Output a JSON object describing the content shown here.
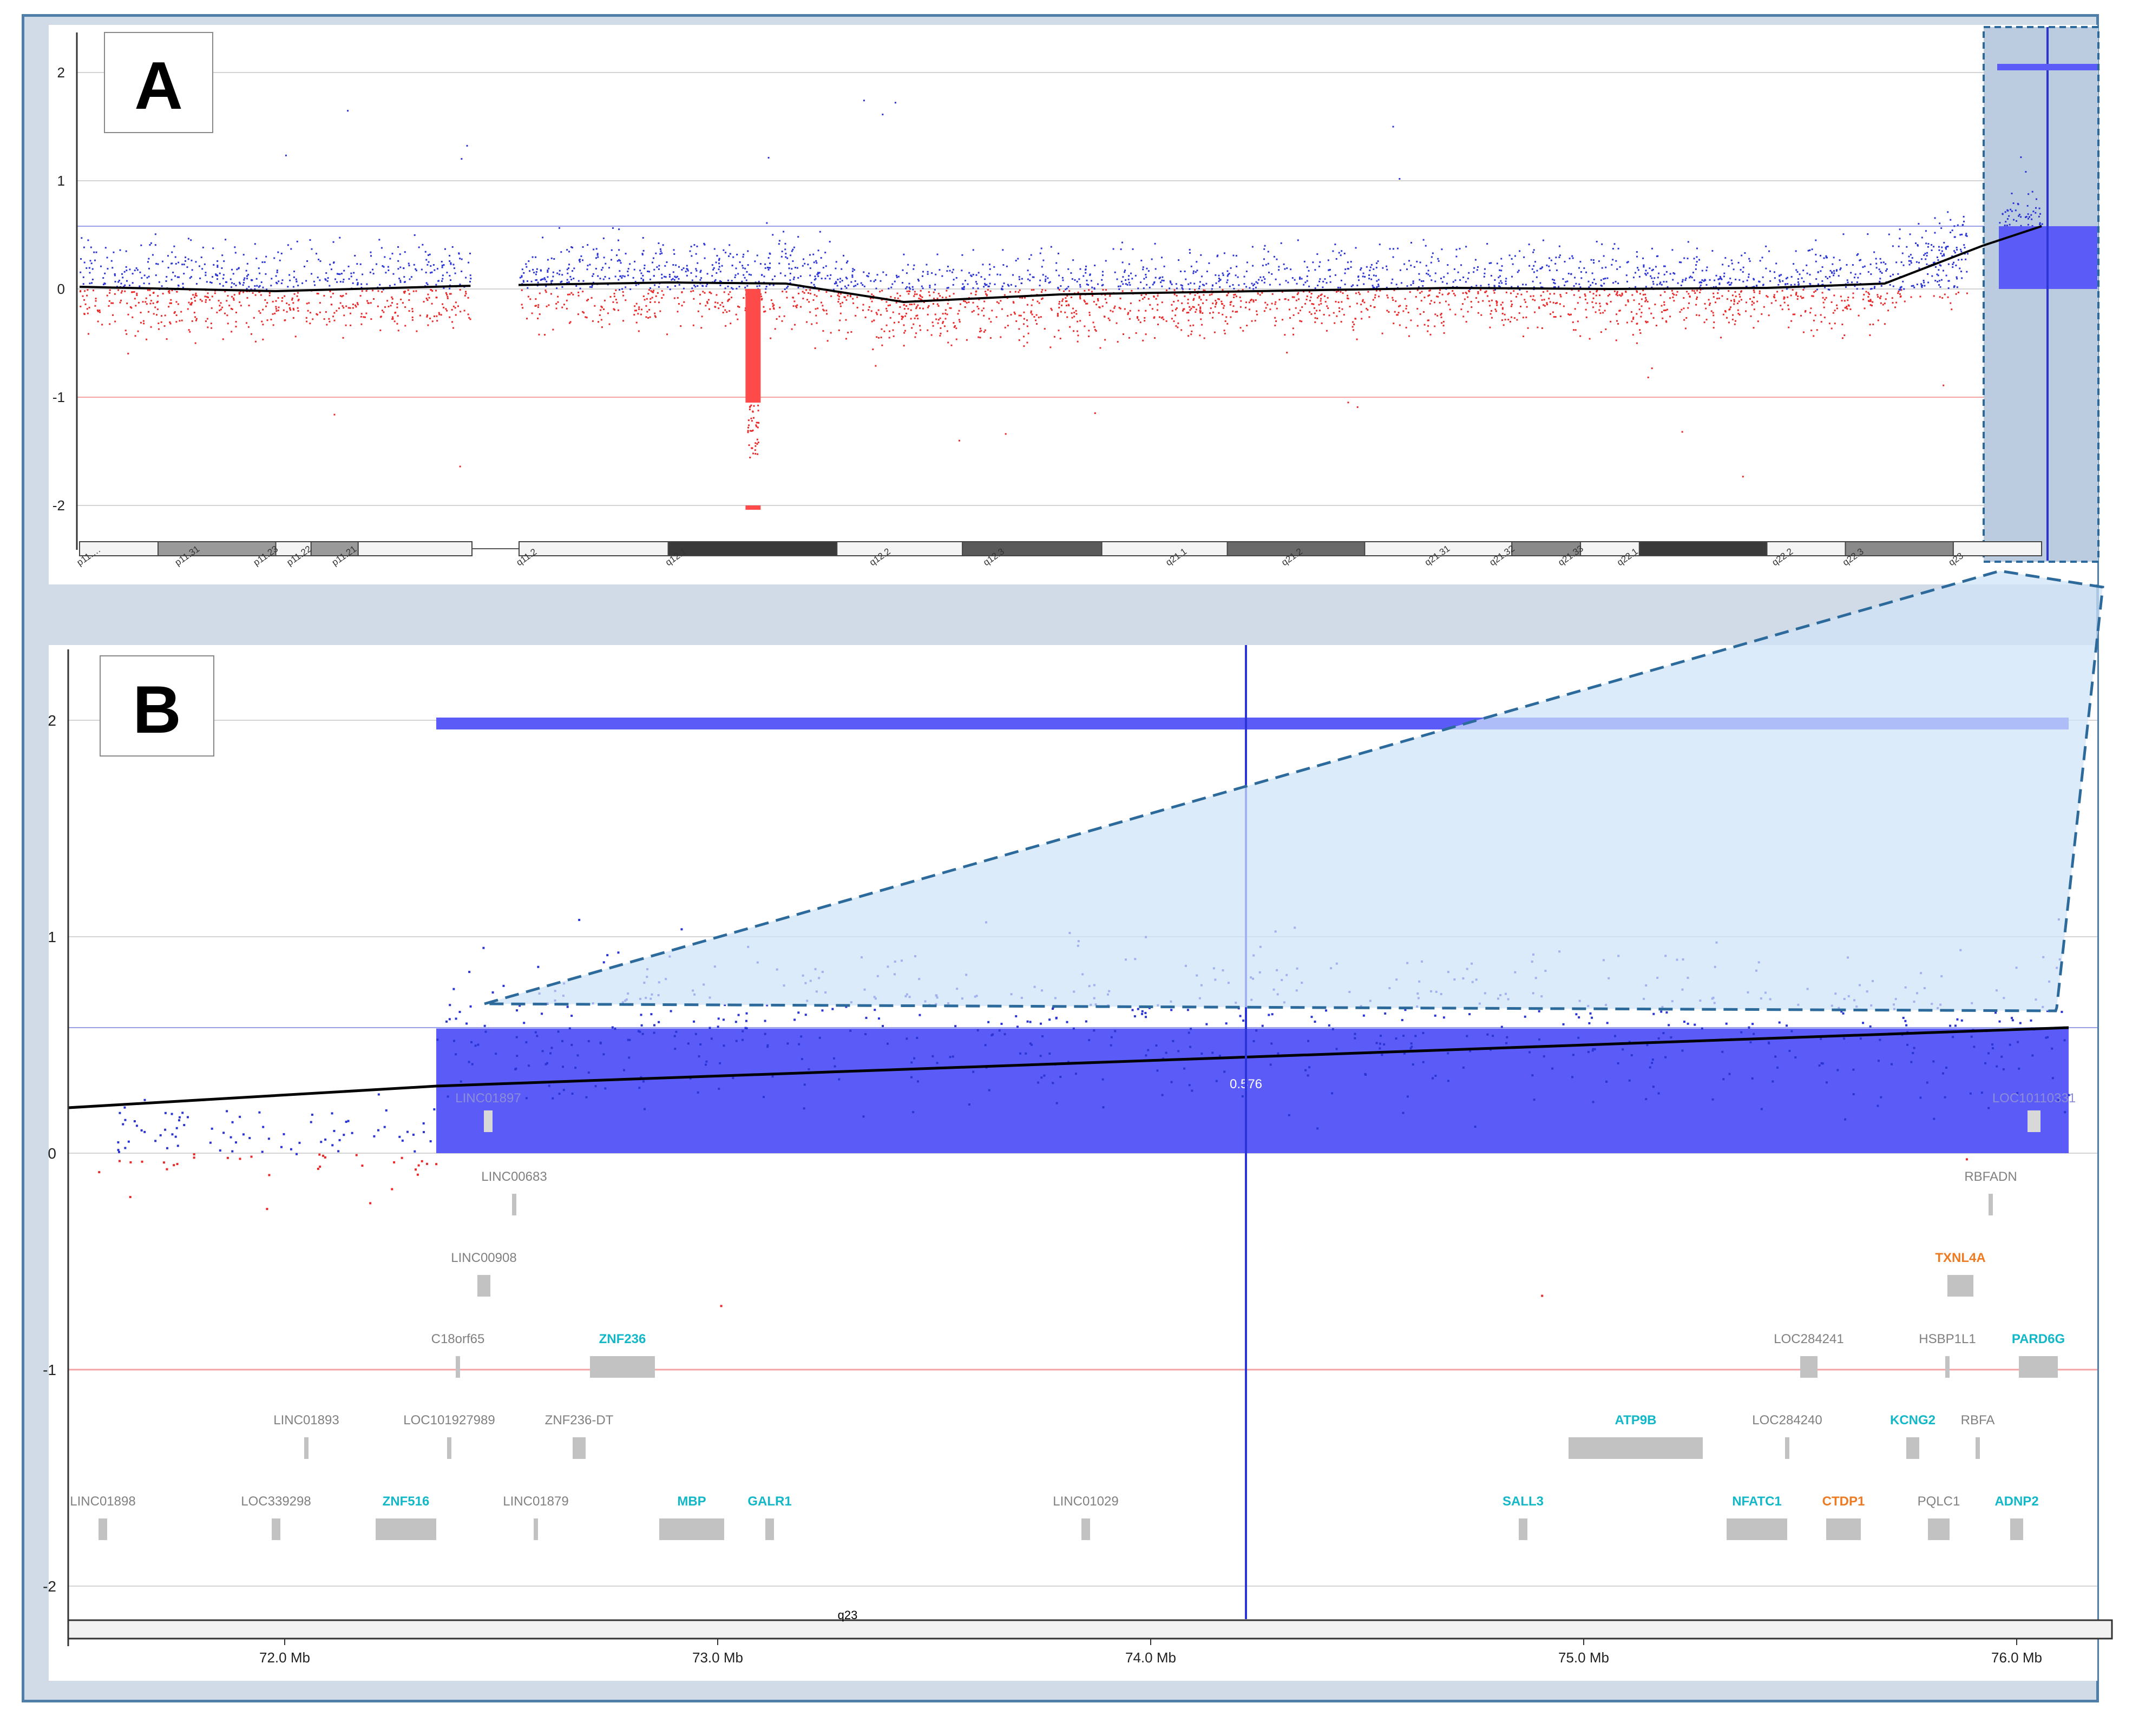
{
  "colors": {
    "gain": "#2b35d6",
    "loss": "#ea2a2a",
    "gainBar": "#5b5cf7",
    "lossBar": "#ff4a4a",
    "trend": "#000000",
    "gainRef": "#9aa0e8",
    "lossRef": "#f2a3a3",
    "selection": "#bccce0",
    "zoom": "#cfe3f6",
    "zoomStroke": "#2d6a9c",
    "genePlain": "#808080",
    "geneCyan": "#13b8c8",
    "geneOrange": "#ee7a22"
  },
  "chart_data": [
    {
      "type": "scatter",
      "panel_label": "A",
      "yticks": [
        2,
        1,
        0,
        -1,
        -2
      ],
      "ylim": [
        -2.35,
        2.2
      ],
      "thresholds": {
        "gain": 0.58,
        "loss": -1.0
      },
      "trend": {
        "x": [
          0.0,
          0.1,
          0.2,
          0.3,
          0.36,
          0.42,
          0.5,
          0.6,
          0.7,
          0.78,
          0.86,
          0.92,
          0.97,
          1.0
        ],
        "y": [
          0.02,
          -0.02,
          0.03,
          0.06,
          0.05,
          -0.12,
          -0.05,
          -0.02,
          0.01,
          0.0,
          0.01,
          0.05,
          0.4,
          0.58
        ]
      },
      "segments": [
        {
          "x0": 0.343,
          "x1": 0.345,
          "y0": 0,
          "y1": -1.05,
          "kind": "loss",
          "note_value": -1.05
        },
        {
          "x0": 0.948,
          "x1": 1.0,
          "y0": 0,
          "y1": 0.58,
          "kind": "gain",
          "note_value": 0.58
        }
      ],
      "cytobands": [
        "p11.…",
        "p11.31",
        "p11.23",
        "p11.22",
        "p11.21",
        "q11.2",
        "q12.1",
        "q12.2",
        "q12.3",
        "q21.1",
        "q21.2",
        "q21.31",
        "q21.32",
        "q21.33",
        "q22.1",
        "q22.2",
        "q22.3",
        "q23"
      ]
    },
    {
      "type": "scatter",
      "panel_label": "B",
      "yticks": [
        2,
        1,
        0,
        -1,
        -2
      ],
      "ylim": [
        -2.2,
        2.2
      ],
      "xticks": [
        72.0,
        73.0,
        74.0,
        75.0,
        76.0
      ],
      "xtick_labels": [
        "72.0 Mb",
        "73.0 Mb",
        "74.0 Mb",
        "75.0 Mb",
        "76.0 Mb"
      ],
      "xlim": [
        71.5,
        76.22
      ],
      "cursor_x": 74.22,
      "segment": {
        "x0": 72.35,
        "x1": 76.12,
        "value": 0.576,
        "label": "0.576"
      },
      "trend": {
        "x": [
          71.5,
          72.35,
          76.12
        ],
        "y": [
          0.21,
          0.31,
          0.58
        ]
      },
      "cytoband_label": "q23",
      "genes": [
        {
          "name": "LINC01897",
          "x": 72.47,
          "row": "in",
          "color": "plain",
          "w": 0.02
        },
        {
          "name": "LOC10110331",
          "x": 76.04,
          "row": "in",
          "color": "plain",
          "w": 0.03
        },
        {
          "name": "LINC00683",
          "x": 72.53,
          "row": 0,
          "color": "plain",
          "w": 0.005
        },
        {
          "name": "RBFADN",
          "x": 75.94,
          "row": 0,
          "color": "plain",
          "w": 0.01
        },
        {
          "name": "LINC00908",
          "x": 72.46,
          "row": 1,
          "color": "plain",
          "w": 0.03
        },
        {
          "name": "TXNL4A",
          "x": 75.87,
          "row": 1,
          "color": "orange",
          "w": 0.06
        },
        {
          "name": "C18orf65",
          "x": 72.4,
          "row": 2,
          "color": "plain",
          "w": 0.005
        },
        {
          "name": "ZNF236",
          "x": 72.78,
          "row": 2,
          "color": "cyan",
          "w": 0.15
        },
        {
          "name": "LOC284241",
          "x": 75.52,
          "row": 2,
          "color": "plain",
          "w": 0.04
        },
        {
          "name": "HSBP1L1",
          "x": 75.84,
          "row": 2,
          "color": "plain",
          "w": 0.01
        },
        {
          "name": "PARD6G",
          "x": 76.05,
          "row": 2,
          "color": "cyan",
          "w": 0.09
        },
        {
          "name": "LINC01893",
          "x": 72.05,
          "row": 3,
          "color": "plain",
          "w": 0.005
        },
        {
          "name": "LOC101927989",
          "x": 72.38,
          "row": 3,
          "color": "plain",
          "w": 0.005
        },
        {
          "name": "ZNF236-DT",
          "x": 72.68,
          "row": 3,
          "color": "plain",
          "w": 0.03
        },
        {
          "name": "ATP9B",
          "x": 75.12,
          "row": 3,
          "color": "cyan",
          "w": 0.31
        },
        {
          "name": "LOC284240",
          "x": 75.47,
          "row": 3,
          "color": "plain",
          "w": 0.01
        },
        {
          "name": "KCNG2",
          "x": 75.76,
          "row": 3,
          "color": "cyan",
          "w": 0.03
        },
        {
          "name": "RBFA",
          "x": 75.91,
          "row": 3,
          "color": "plain",
          "w": 0.01
        },
        {
          "name": "LINC01898",
          "x": 71.58,
          "row": 4,
          "color": "plain",
          "w": 0.02
        },
        {
          "name": "LOC339298",
          "x": 71.98,
          "row": 4,
          "color": "plain",
          "w": 0.02
        },
        {
          "name": "ZNF516",
          "x": 72.28,
          "row": 4,
          "color": "cyan",
          "w": 0.14
        },
        {
          "name": "LINC01879",
          "x": 72.58,
          "row": 4,
          "color": "plain",
          "w": 0.005
        },
        {
          "name": "MBP",
          "x": 72.94,
          "row": 4,
          "color": "cyan",
          "w": 0.15
        },
        {
          "name": "GALR1",
          "x": 73.12,
          "row": 4,
          "color": "cyan",
          "w": 0.02
        },
        {
          "name": "LINC01029",
          "x": 73.85,
          "row": 4,
          "color": "plain",
          "w": 0.02
        },
        {
          "name": "SALL3",
          "x": 74.86,
          "row": 4,
          "color": "cyan",
          "w": 0.02
        },
        {
          "name": "NFATC1",
          "x": 75.4,
          "row": 4,
          "color": "cyan",
          "w": 0.14
        },
        {
          "name": "CTDP1",
          "x": 75.6,
          "row": 4,
          "color": "orange",
          "w": 0.08
        },
        {
          "name": "PQLC1",
          "x": 75.82,
          "row": 4,
          "color": "plain",
          "w": 0.05
        },
        {
          "name": "ADNP2",
          "x": 76.0,
          "row": 4,
          "color": "cyan",
          "w": 0.03
        }
      ]
    }
  ]
}
